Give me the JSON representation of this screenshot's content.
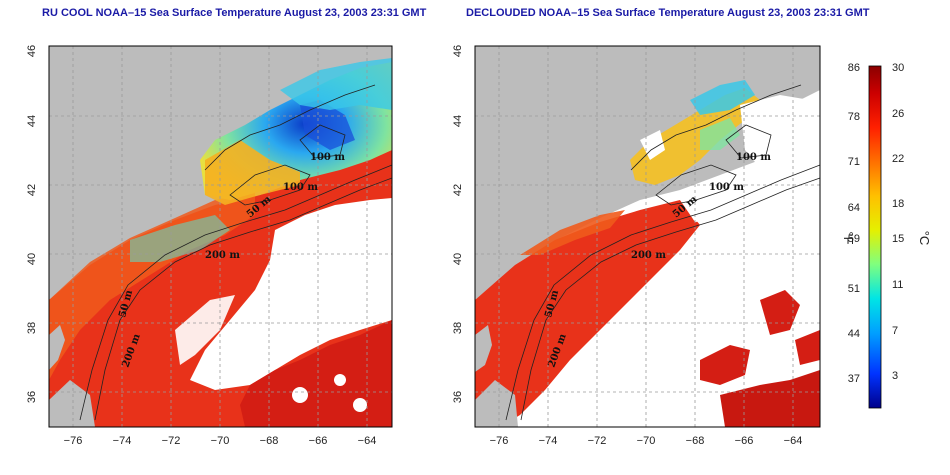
{
  "panels": [
    {
      "title": "RU COOL NOAA–15 Sea Surface Temperature August 23, 2003 23:31 GMT",
      "contour_labels": [
        "100 m",
        "100 m",
        "50 m",
        "200 m",
        "50 m",
        "200 m"
      ]
    },
    {
      "title": "DECLOUDED NOAA–15 Sea Surface Temperature August 23, 2003 23:31 GMT",
      "contour_labels": [
        "100 m",
        "100 m",
        "50 m",
        "200 m",
        "50 m",
        "200 m"
      ]
    }
  ],
  "axes": {
    "lat_ticks": [
      "36",
      "38",
      "40",
      "42",
      "44",
      "46"
    ],
    "lon_ticks": [
      "−76",
      "−74",
      "−72",
      "−70",
      "−68",
      "−66",
      "−64"
    ]
  },
  "colorbar": {
    "fahrenheit_ticks": [
      "86",
      "78",
      "71",
      "64",
      "59",
      "51",
      "44",
      "37"
    ],
    "celsius_ticks": [
      "30",
      "26",
      "22",
      "18",
      "15",
      "11",
      "7",
      "3"
    ],
    "f_unit": "°F",
    "c_unit": "°C",
    "colors": [
      "#00008b",
      "#0033ff",
      "#00a0ff",
      "#00e5e5",
      "#7fff7f",
      "#e5f000",
      "#ffc000",
      "#ff7000",
      "#ff2000",
      "#cc0000",
      "#8b0000"
    ]
  },
  "map_colors": {
    "land": "#bcbcbc",
    "cloud": "#ffffff",
    "warm_water": "#e8321a",
    "cool_water": "#f5b020",
    "cold_water": "#38b8f0",
    "frame": "#000000"
  }
}
